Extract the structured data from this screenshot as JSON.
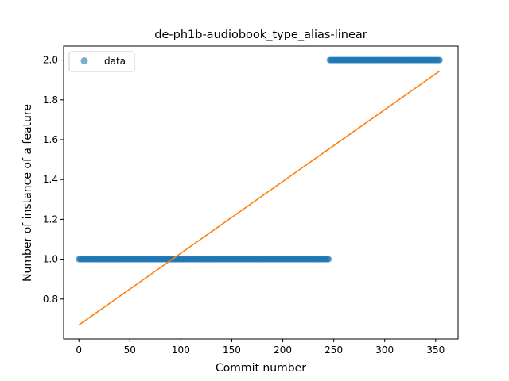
{
  "chart_data": {
    "type": "scatter",
    "title": "de-ph1b-audiobook_type_alias-linear",
    "xlabel": "Commit number",
    "ylabel": "Number of instance of a feature",
    "xlim": [
      -15,
      372
    ],
    "ylim": [
      0.6,
      2.07
    ],
    "xticks": [
      0,
      50,
      100,
      150,
      200,
      250,
      300,
      350
    ],
    "yticks": [
      0.8,
      1.0,
      1.2,
      1.4,
      1.6,
      1.8,
      2.0
    ],
    "xtick_labels": [
      "0",
      "50",
      "100",
      "150",
      "200",
      "250",
      "300",
      "350"
    ],
    "ytick_labels": [
      "0.8",
      "1.0",
      "1.2",
      "1.4",
      "1.6",
      "1.8",
      "2.0"
    ],
    "grid": false,
    "legend": {
      "position": "top-left",
      "entries": [
        "data"
      ]
    },
    "series": [
      {
        "name": "data",
        "kind": "points",
        "color": "#1f77b4",
        "segments": [
          {
            "x_start": 0,
            "x_end": 245,
            "y": 1.0
          },
          {
            "x_start": 246,
            "x_end": 354,
            "y": 2.0
          }
        ]
      },
      {
        "kind": "line",
        "color": "#ff7f0e",
        "x": [
          0,
          354
        ],
        "y": [
          0.67,
          1.945
        ]
      }
    ]
  }
}
